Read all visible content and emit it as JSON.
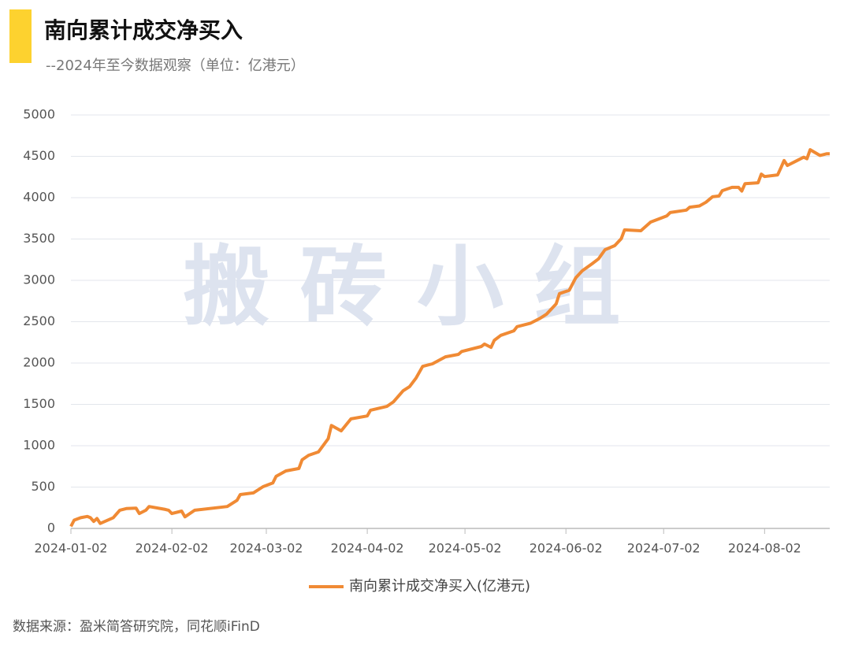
{
  "chart_data": {
    "type": "line",
    "title": "南向累计成交净买入",
    "subtitle": "--2024年至今数据观察（单位：亿港元）",
    "watermark": "搬 砖 小 组",
    "source": "数据来源：盈米简答研究院，同花顺iFinD",
    "x": [
      "2024-01-02",
      "2024-01-03",
      "2024-01-05",
      "2024-01-07",
      "2024-01-08",
      "2024-01-09",
      "2024-01-10",
      "2024-01-11",
      "2024-01-15",
      "2024-01-17",
      "2024-01-19",
      "2024-01-22",
      "2024-01-23",
      "2024-01-25",
      "2024-01-26",
      "2024-01-31",
      "2024-02-01",
      "2024-02-02",
      "2024-02-05",
      "2024-02-06",
      "2024-02-09",
      "2024-02-19",
      "2024-02-22",
      "2024-02-23",
      "2024-02-27",
      "2024-03-01",
      "2024-03-04",
      "2024-03-05",
      "2024-03-08",
      "2024-03-12",
      "2024-03-13",
      "2024-03-15",
      "2024-03-18",
      "2024-03-21",
      "2024-03-22",
      "2024-03-25",
      "2024-03-28",
      "2024-04-02",
      "2024-04-03",
      "2024-04-08",
      "2024-04-10",
      "2024-04-13",
      "2024-04-15",
      "2024-04-17",
      "2024-04-19",
      "2024-04-22",
      "2024-04-26",
      "2024-04-30",
      "2024-05-01",
      "2024-05-07",
      "2024-05-08",
      "2024-05-10",
      "2024-05-11",
      "2024-05-13",
      "2024-05-17",
      "2024-05-18",
      "2024-05-22",
      "2024-05-25",
      "2024-05-27",
      "2024-05-30",
      "2024-05-31",
      "2024-06-03",
      "2024-06-05",
      "2024-06-07",
      "2024-06-10",
      "2024-06-12",
      "2024-06-14",
      "2024-06-17",
      "2024-06-19",
      "2024-06-20",
      "2024-06-25",
      "2024-06-28",
      "2024-07-03",
      "2024-07-04",
      "2024-07-09",
      "2024-07-10",
      "2024-07-13",
      "2024-07-15",
      "2024-07-17",
      "2024-07-19",
      "2024-07-20",
      "2024-07-23",
      "2024-07-25",
      "2024-07-26",
      "2024-07-27",
      "2024-07-31",
      "2024-08-01",
      "2024-08-02",
      "2024-08-06",
      "2024-08-07",
      "2024-08-08",
      "2024-08-09",
      "2024-08-12",
      "2024-08-14",
      "2024-08-15",
      "2024-08-16",
      "2024-08-19",
      "2024-08-21",
      "2024-08-22"
    ],
    "series": [
      {
        "name": "南向累计成交净买入(亿港元)",
        "color": "#f08a34",
        "values": [
          25,
          100,
          130,
          145,
          130,
          85,
          120,
          60,
          130,
          220,
          240,
          245,
          180,
          220,
          265,
          230,
          220,
          180,
          210,
          140,
          220,
          265,
          340,
          410,
          430,
          505,
          550,
          630,
          695,
          725,
          830,
          885,
          925,
          1085,
          1245,
          1180,
          1325,
          1360,
          1430,
          1475,
          1530,
          1665,
          1715,
          1820,
          1960,
          1990,
          2075,
          2105,
          2140,
          2200,
          2230,
          2190,
          2275,
          2335,
          2390,
          2440,
          2480,
          2540,
          2590,
          2715,
          2840,
          2880,
          3030,
          3115,
          3200,
          3260,
          3370,
          3420,
          3505,
          3610,
          3600,
          3705,
          3780,
          3820,
          3850,
          3885,
          3900,
          3945,
          4010,
          4020,
          4085,
          4125,
          4125,
          4080,
          4170,
          4180,
          4285,
          4255,
          4275,
          4360,
          4450,
          4390,
          4450,
          4490,
          4470,
          4580,
          4510,
          4530,
          4530
        ]
      }
    ],
    "xlim": [
      "2024-01-02",
      "2024-08-22"
    ],
    "xticks": [
      "2024-01-02",
      "2024-02-02",
      "2024-03-02",
      "2024-04-02",
      "2024-05-02",
      "2024-06-02",
      "2024-07-02",
      "2024-08-02"
    ],
    "ylim": [
      0,
      5000
    ],
    "yticks": [
      0,
      500,
      1000,
      1500,
      2000,
      2500,
      3000,
      3500,
      4000,
      4500,
      5000
    ],
    "grid": true,
    "legend": "bottom"
  }
}
